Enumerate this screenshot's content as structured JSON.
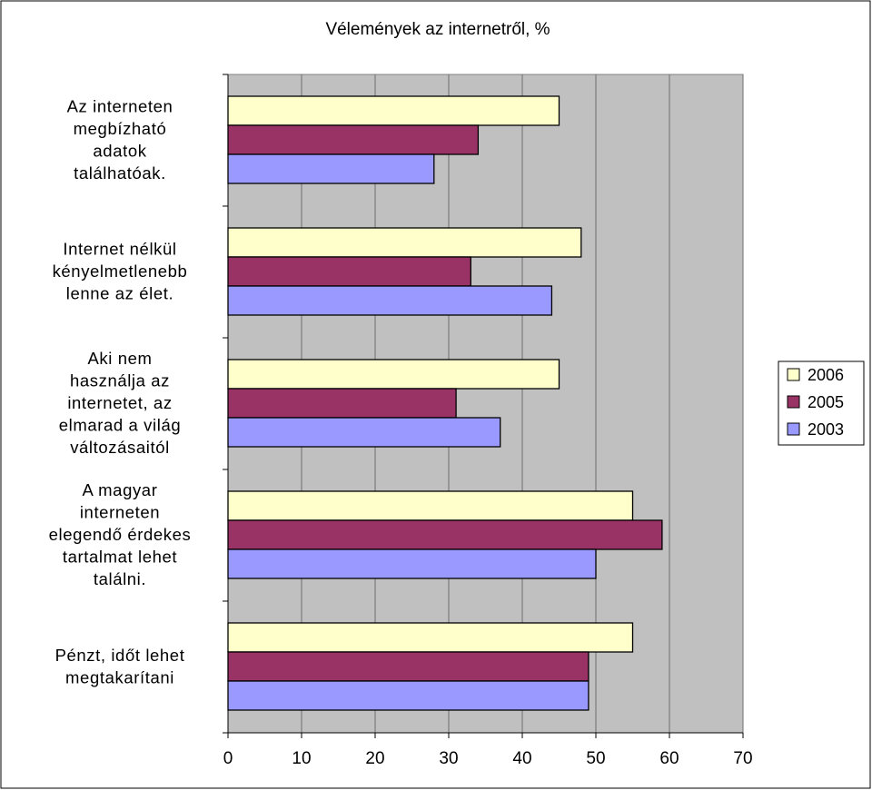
{
  "chart_data": {
    "type": "bar",
    "orientation": "horizontal",
    "title": "Vélemények az internetről, %",
    "xlabel": "",
    "ylabel": "",
    "xlim": [
      0,
      70
    ],
    "xticks": [
      0,
      10,
      20,
      30,
      40,
      50,
      60,
      70
    ],
    "grid": true,
    "legend_position": "right",
    "categories": [
      [
        "Az interneten",
        "megbízható",
        "adatok",
        "találhatóak."
      ],
      [
        "Internet nélkül",
        "kényelmetlenebb",
        "lenne az élet."
      ],
      [
        "Aki nem",
        "használja az",
        "internetet, az",
        "elmarad a világ",
        "változásaitól"
      ],
      [
        "A magyar",
        "interneten",
        "elegendő érdekes",
        "tartalmat lehet",
        "találni."
      ],
      [
        "Pénzt, időt lehet",
        "megtakarítani"
      ]
    ],
    "series": [
      {
        "name": "2006",
        "color": "#FFFFCC",
        "values": [
          45,
          48,
          45,
          55,
          55
        ]
      },
      {
        "name": "2005",
        "color": "#993366",
        "values": [
          34,
          33,
          31,
          59,
          49
        ]
      },
      {
        "name": "2003",
        "color": "#9999FF",
        "values": [
          28,
          44,
          37,
          50,
          49
        ]
      }
    ],
    "plot_background": "#C0C0C0"
  }
}
